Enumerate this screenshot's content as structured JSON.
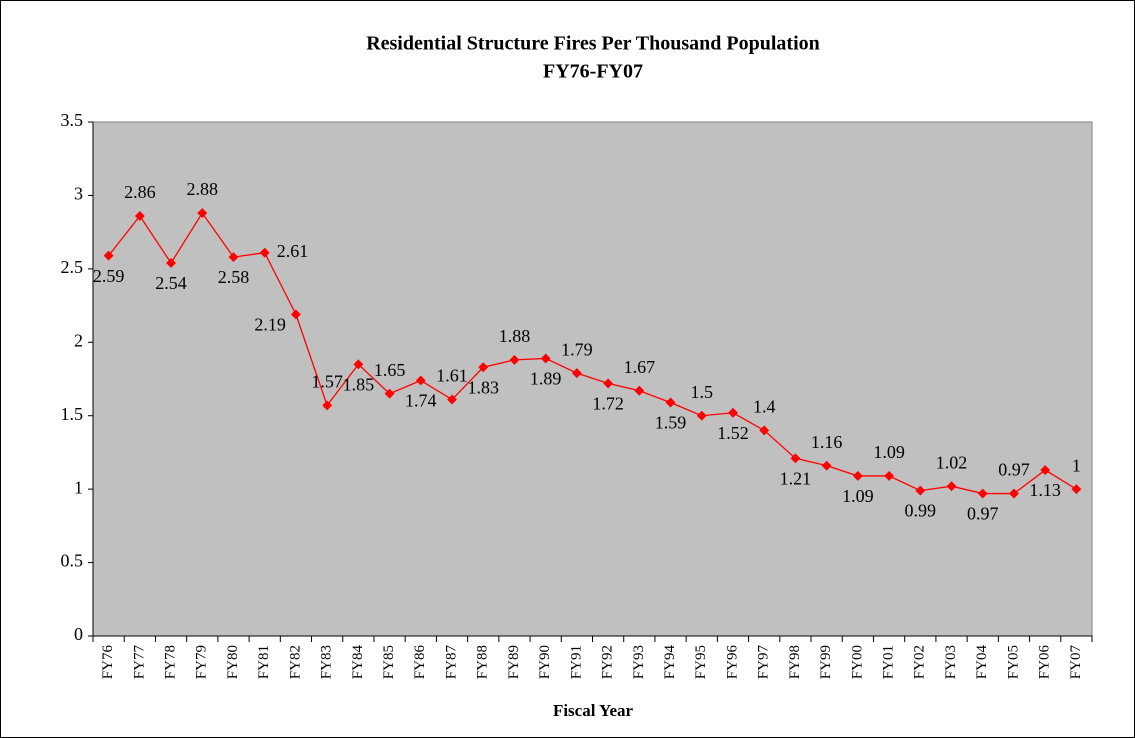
{
  "chart_data": {
    "type": "line",
    "title": "Residential Structure Fires Per Thousand Population",
    "subtitle": "FY76-FY07",
    "x_label": "Fiscal Year",
    "categories": [
      "FY76",
      "FY77",
      "FY78",
      "FY79",
      "FY80",
      "FY81",
      "FY82",
      "FY83",
      "FY84",
      "FY85",
      "FY86",
      "FY87",
      "FY88",
      "FY89",
      "FY90",
      "FY91",
      "FY92",
      "FY93",
      "FY94",
      "FY95",
      "FY96",
      "FY97",
      "FY98",
      "FY99",
      "FY00",
      "FY01",
      "FY02",
      "FY03",
      "FY04",
      "FY05",
      "FY06",
      "FY07"
    ],
    "values": [
      2.59,
      2.86,
      2.54,
      2.88,
      2.58,
      2.61,
      2.19,
      1.57,
      1.85,
      1.65,
      1.74,
      1.61,
      1.83,
      1.88,
      1.89,
      1.79,
      1.72,
      1.67,
      1.59,
      1.5,
      1.52,
      1.4,
      1.21,
      1.16,
      1.09,
      1.09,
      0.99,
      1.02,
      0.97,
      0.97,
      1.13,
      1
    ],
    "color": "#ff0000",
    "plot_background": "#c0c0c0",
    "ylim": [
      0,
      3.5
    ],
    "yticks": [
      0,
      0.5,
      1,
      1.5,
      2,
      2.5,
      3,
      3.5
    ],
    "grid": false
  }
}
